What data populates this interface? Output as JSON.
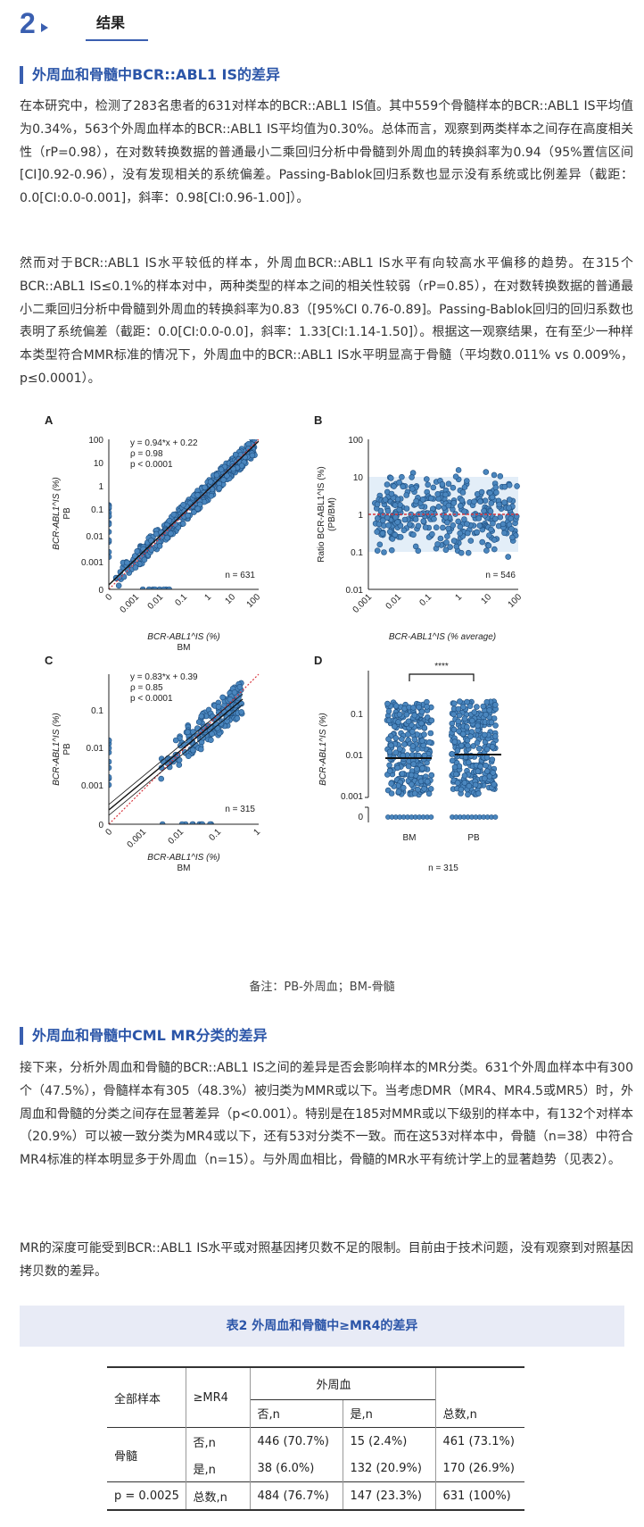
{
  "section": {
    "number": "2",
    "title": "结果"
  },
  "sub1": {
    "heading": "外周血和骨髓中BCR::ABL1 IS的差异",
    "para1": "在本研究中，检测了283名患者的631对样本的BCR::ABL1 IS值。其中559个骨髓样本的BCR::ABL1 IS平均值为0.34%，563个外周血样本的BCR::ABL1 IS平均值为0.30%。总体而言，观察到两类样本之间存在高度相关性（rP=0.98），在对数转换数据的普通最小二乘回归分析中骨髓到外周血的转换斜率为0.94（95%置信区间[CI]0.92-0.96），没有发现相关的系统偏差。Passing-Bablok回归系数也显示没有系统或比例差异（截距：0.0[CI:0.0-0.001]，斜率：0.98[CI:0.96-1.00]）。",
    "para2": "然而对于BCR::ABL1 IS水平较低的样本，外周血BCR::ABL1 IS水平有向较高水平偏移的趋势。在315个BCR::ABL1 IS≤0.1%的样本对中，两种类型的样本之间的相关性较弱（rP=0.85），在对数转换数据的普通最小二乘回归分析中骨髓到外周血的转换斜率为0.83（[95%CI 0.76-0.89]。Passing-Bablok回归的回归系数也表明了系统偏差（截距：0.0[CI:0.0-0.0]，斜率：1.33[CI:1.14-1.50]）。根据这一观察结果，在有至少一种样本类型符合MMR标准的情况下，外周血中的BCR::ABL1 IS水平明显高于骨髓（平均数0.011% vs 0.009%，p≤0.0001）。"
  },
  "figure": {
    "note": "备注：PB-外周血；BM-骨髓",
    "panels": {
      "A": {
        "letter": "A",
        "eq": "y = 0.94*x + 0.22",
        "rho": "ρ = 0.98",
        "p": "p < 0.0001",
        "n": "n = 631",
        "yticks": [
          "100",
          "10",
          "1",
          "0.1",
          "0.01",
          "0.001",
          "0"
        ],
        "xticks": [
          "0",
          "0.001",
          "0.01",
          "0.1",
          "1",
          "10",
          "100"
        ],
        "ylabel": "BCR-ABL1^IS (%)",
        "ylabel2": "PB",
        "xlabel": "BCR-ABL1^IS (%)",
        "xlabel2": "BM"
      },
      "B": {
        "letter": "B",
        "n": "n = 546",
        "yticks": [
          "100",
          "10",
          "1",
          "0.1",
          "0.01"
        ],
        "xticks": [
          "0.001",
          "0.01",
          "0.1",
          "1",
          "10",
          "100"
        ],
        "ylabel": "Ratio BCR-ABL1^IS (%)",
        "ylabel2": "(PB/BM)",
        "xlabel": "BCR-ABL1^IS (% average)"
      },
      "C": {
        "letter": "C",
        "eq": "y = 0.83*x + 0.39",
        "rho": "ρ = 0.85",
        "p": "p < 0.0001",
        "n": "n = 315",
        "yticks": [
          "0.1",
          "0.01",
          "0.001",
          "0"
        ],
        "xticks": [
          "0",
          "0.001",
          "0.01",
          "0.1",
          "1"
        ],
        "ylabel": "BCR-ABL1^IS (%)",
        "ylabel2": "PB",
        "xlabel": "BCR-ABL1^IS (%)",
        "xlabel2": "BM"
      },
      "D": {
        "letter": "D",
        "sig": "****",
        "n": "n = 315",
        "yticks": [
          "0.1",
          "0.01",
          "0.001",
          "0"
        ],
        "groups": [
          "BM",
          "PB"
        ],
        "ylabel": "BCR-ABL1^IS (%)"
      }
    }
  },
  "sub2": {
    "heading": "外周血和骨髓中CML MR分类的差异",
    "para1": "接下来，分析外周血和骨髓的BCR::ABL1 IS之间的差异是否会影响样本的MR分类。631个外周血样本中有300个（47.5%），骨髓样本有305（48.3%）被归类为MMR或以下。当考虑DMR（MR4、MR4.5或MR5）时，外周血和骨髓的分类之间存在显著差异（p<0.001）。特别是在185对MMR或以下级别的样本中，有132个对样本（20.9%）可以被一致分类为MR4或以下，还有53对分类不一致。而在这53对样本中，骨髓（n=38）中符合MR4标准的样本明显多于外周血（n=15）。与外周血相比，骨髓的MR水平有统计学上的显著趋势（见表2）。",
    "para2": "MR的深度可能受到BCR::ABL1 IS水平或对照基因拷贝数不足的限制。目前由于技术问题，没有观察到对照基因拷贝数的差异。"
  },
  "table": {
    "title": "表2  外周血和骨髓中≥MR4的差异",
    "h_all": "全部样本",
    "h_mr4": "≥MR4",
    "h_pb": "外周血",
    "h_no": "否,n",
    "h_yes": "是,n",
    "h_total": "总数,n",
    "bm": "骨髓",
    "r1": {
      "label": "否,n",
      "c1": "446 (70.7%)",
      "c2": "15 (2.4%)",
      "c3": "461 (73.1%)"
    },
    "r2": {
      "label": "是,n",
      "c1": "38 (6.0%)",
      "c2": "132 (20.9%)",
      "c3": "170 (26.9%)"
    },
    "r3": {
      "p": "p = 0.0025",
      "label": "总数,n",
      "c1": "484 (76.7%)",
      "c2": "147 (23.3%)",
      "c3": "631 (100%)"
    }
  },
  "colors": {
    "accent": "#3a5fb0",
    "dot": "#4a86be",
    "ref": "#d9363e"
  }
}
